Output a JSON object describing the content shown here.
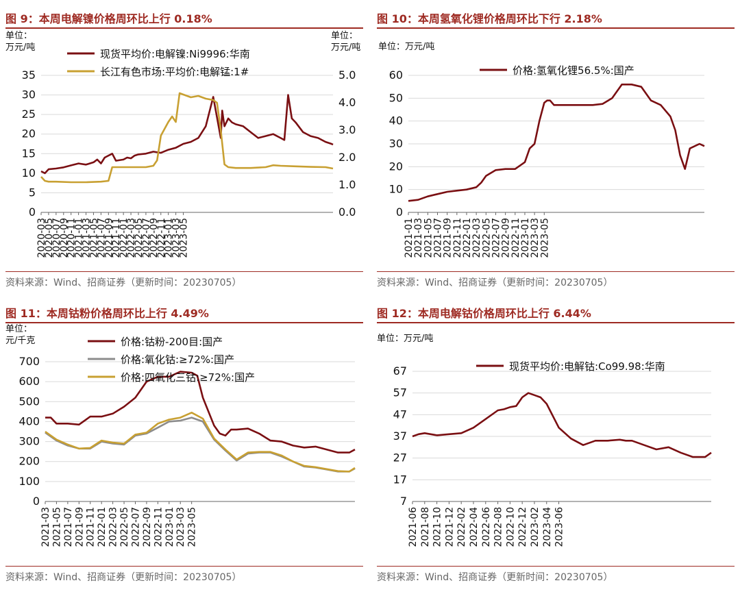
{
  "source_text": "资料来源：Wind、招商证券（更新时间：20230705）",
  "colors": {
    "title": "#9e2a22",
    "series_dark": "#7a0f12",
    "series_gold": "#c8a032",
    "series_gray": "#8c8c8c"
  },
  "chart_data": [
    {
      "type": "line",
      "title": "图 9：本周电解镍价格周环比上行 0.18%",
      "ylabel": "单位：万元/吨",
      "ylabel_lines": [
        "单位：",
        "万元/吨"
      ],
      "y2label_lines": [
        "单位：",
        "万元/吨"
      ],
      "x_ticks": [
        "2020-03",
        "2020-05",
        "2020-07",
        "2020-09",
        "2020-11",
        "2021-01",
        "2021-03",
        "2021-05",
        "2021-07",
        "2021-09",
        "2021-11",
        "2022-01",
        "2022-03",
        "2022-05",
        "2022-07",
        "2022-09",
        "2022-11",
        "2023-01",
        "2023-03",
        "2023-05"
      ],
      "ylim": [
        0,
        35
      ],
      "y_ticks": [
        0,
        5,
        10,
        15,
        20,
        25,
        30,
        35
      ],
      "y2lim": [
        0,
        5
      ],
      "y2_ticks": [
        "0.0",
        "1.0",
        "2.0",
        "3.0",
        "4.0",
        "5.0"
      ],
      "legend_position": "top-left",
      "grid": "horizontal",
      "series": [
        {
          "name": "现货平均价:电解镍:Ni9996:华南",
          "color": "#7a0f12",
          "axis": "left",
          "x": [
            0,
            0.5,
            1,
            2,
            3,
            4,
            5,
            6,
            7,
            7.5,
            8,
            8.5,
            9,
            9.5,
            10,
            11,
            11.5,
            12,
            12.5,
            13,
            14,
            15,
            16,
            17,
            18,
            19,
            20,
            21,
            22,
            23,
            24,
            24.2,
            24.5,
            25,
            25.5,
            26,
            27,
            28,
            29,
            30,
            31,
            32,
            32.5,
            33,
            33.5,
            34,
            35,
            36,
            37,
            38,
            38.8,
            39
          ],
          "values": [
            10.5,
            10,
            11,
            11.2,
            11.5,
            12,
            12.5,
            12.2,
            12.8,
            13.5,
            12.5,
            14,
            14.5,
            15,
            13.2,
            13.5,
            14,
            13.8,
            14.5,
            14.8,
            15,
            15.5,
            15.2,
            16,
            16.5,
            17.5,
            18,
            19,
            22,
            29.5,
            19,
            26,
            22,
            24,
            23,
            22.5,
            22,
            20.5,
            19,
            19.5,
            20,
            19,
            18.5,
            30,
            24,
            23,
            20.5,
            19.5,
            19,
            18,
            17.5,
            17.3
          ]
        },
        {
          "name": "长江有色市场:平均价:电解锰:1#",
          "color": "#c8a032",
          "axis": "right",
          "x": [
            0,
            0.5,
            1,
            2,
            4,
            6,
            8,
            9,
            9.5,
            10,
            12,
            14,
            15,
            15.5,
            16,
            17,
            17.5,
            18,
            18.5,
            19,
            20,
            21,
            22,
            23,
            23.5,
            24,
            24.5,
            25,
            26,
            28,
            30,
            31,
            32,
            34,
            36,
            38,
            39
          ],
          "values": [
            1.3,
            1.15,
            1.12,
            1.12,
            1.1,
            1.1,
            1.12,
            1.15,
            1.65,
            1.65,
            1.65,
            1.65,
            1.7,
            1.9,
            2.8,
            3.3,
            3.5,
            3.3,
            4.35,
            4.3,
            4.2,
            4.25,
            4.15,
            4.1,
            4.0,
            3.0,
            1.75,
            1.65,
            1.62,
            1.62,
            1.65,
            1.72,
            1.7,
            1.68,
            1.66,
            1.65,
            1.6
          ]
        }
      ]
    },
    {
      "type": "line",
      "title": "图 10：本周氢氧化锂价格周环比下行 2.18%",
      "ylabel": "单位：万元/吨",
      "x_ticks": [
        "2021-01",
        "2021-03",
        "2021-05",
        "2021-07",
        "2021-09",
        "2021-11",
        "2022-01",
        "2022-03",
        "2022-05",
        "2022-07",
        "2022-09",
        "2022-11",
        "2023-01",
        "2023-03",
        "2023-05"
      ],
      "ylim": [
        0,
        60
      ],
      "y_ticks": [
        0,
        10,
        20,
        30,
        40,
        50,
        60
      ],
      "legend_position": "top-center",
      "grid": "horizontal",
      "series": [
        {
          "name": "价格:氢氧化锂56.5%:国产",
          "color": "#7a0f12",
          "x": [
            0,
            1,
            2,
            3,
            4,
            5,
            6,
            7,
            7.5,
            8,
            9,
            10,
            11,
            12,
            12.5,
            13,
            13.5,
            14,
            14.3,
            14.6,
            15,
            16,
            17,
            18,
            19,
            20,
            21,
            21.5,
            22,
            23,
            24,
            25,
            26,
            27,
            27.5,
            28,
            28.5,
            29,
            30,
            30.5
          ],
          "values": [
            5,
            5.5,
            7,
            8,
            9,
            9.5,
            10,
            11,
            13,
            16,
            18.5,
            19,
            19,
            22,
            28,
            30,
            40,
            48,
            49,
            49,
            47,
            47,
            47,
            47,
            47,
            47.5,
            50,
            53,
            56,
            56,
            55,
            49,
            47,
            42,
            36,
            25,
            19,
            28,
            30,
            29
          ]
        }
      ]
    },
    {
      "type": "line",
      "title": "图 11：本周钴粉价格周环比上行 4.49%",
      "ylabel": "单位：元/千克",
      "ylabel_lines": [
        "单位：",
        "元/千克"
      ],
      "x_ticks": [
        "2021-03",
        "2021-05",
        "2021-07",
        "2021-09",
        "2021-11",
        "2022-01",
        "2022-03",
        "2022-05",
        "2022-07",
        "2022-09",
        "2022-11",
        "2023-01",
        "2023-03",
        "2023-05"
      ],
      "ylim": [
        0,
        700
      ],
      "y_ticks": [
        0,
        100,
        200,
        300,
        400,
        500,
        600,
        700
      ],
      "legend_position": "top-left",
      "grid": "horizontal",
      "series": [
        {
          "name": "价格:钴粉-200目:国产",
          "color": "#7a0f12",
          "x": [
            0,
            0.5,
            1,
            2,
            3,
            4,
            5,
            6,
            7,
            8,
            9,
            10,
            10.5,
            11,
            12,
            13,
            13.5,
            14,
            15,
            15.5,
            16,
            16.5,
            17,
            18,
            19,
            20,
            21,
            22,
            23,
            24,
            25,
            26,
            27,
            27.5
          ],
          "values": [
            420,
            420,
            390,
            390,
            385,
            425,
            425,
            440,
            475,
            520,
            600,
            625,
            625,
            625,
            650,
            645,
            630,
            520,
            380,
            340,
            330,
            360,
            360,
            365,
            340,
            305,
            300,
            280,
            270,
            275,
            260,
            245,
            245,
            260
          ]
        },
        {
          "name": "价格:氧化钴:≥72%:国产",
          "color": "#8c8c8c",
          "x": [
            0,
            1,
            2,
            3,
            4,
            5,
            6,
            7,
            8,
            9,
            10,
            11,
            12,
            13,
            14,
            15,
            16,
            17,
            18,
            19,
            20,
            21,
            22,
            23,
            24,
            25,
            26,
            27,
            27.5
          ],
          "values": [
            345,
            305,
            280,
            265,
            265,
            300,
            290,
            285,
            330,
            340,
            370,
            400,
            405,
            420,
            400,
            310,
            255,
            205,
            240,
            245,
            245,
            225,
            200,
            175,
            170,
            160,
            150,
            150,
            165
          ]
        },
        {
          "name": "价格:四氧化三钴:≥72%:国产",
          "color": "#c8a032",
          "x": [
            0,
            1,
            2,
            3,
            4,
            5,
            6,
            7,
            8,
            9,
            10,
            11,
            12,
            13,
            14,
            15,
            16,
            17,
            18,
            19,
            20,
            21,
            22,
            23,
            24,
            25,
            26,
            27,
            27.5
          ],
          "values": [
            350,
            310,
            285,
            265,
            268,
            305,
            295,
            290,
            335,
            345,
            390,
            410,
            420,
            445,
            415,
            315,
            260,
            210,
            245,
            248,
            248,
            230,
            200,
            178,
            172,
            162,
            152,
            150,
            168
          ]
        }
      ]
    },
    {
      "type": "line",
      "title": "图 12：本周电解钴价格周环比上行 6.44%",
      "ylabel": "单位：万元/吨",
      "x_ticks": [
        "2021-06",
        "2021-08",
        "2021-10",
        "2021-12",
        "2022-02",
        "2022-04",
        "2022-06",
        "2022-08",
        "2022-10",
        "2022-12",
        "2023-02",
        "2023-04",
        "2023-06"
      ],
      "ylim": [
        7,
        67
      ],
      "y_ticks": [
        7,
        17,
        27,
        37,
        47,
        57,
        67
      ],
      "legend_position": "top-center",
      "grid": "horizontal",
      "series": [
        {
          "name": "现货平均价:电解钴:Co99.98:华南",
          "color": "#7a0f12",
          "x": [
            0,
            0.5,
            1,
            2,
            3,
            4,
            5,
            6,
            7,
            7.5,
            8,
            8.5,
            9,
            9.5,
            10,
            10.5,
            11,
            12,
            13,
            14,
            15,
            16,
            17,
            17.5,
            18,
            19,
            20,
            21,
            22,
            23,
            24,
            24.5
          ],
          "values": [
            37,
            38,
            38.5,
            37.5,
            38,
            38.5,
            41,
            45,
            49,
            49.5,
            50.5,
            51,
            55,
            57,
            56,
            55,
            52,
            41,
            36,
            33,
            35,
            35,
            35.5,
            35,
            35,
            33,
            31,
            32,
            29.5,
            27.5,
            27.5,
            29.5
          ]
        }
      ]
    }
  ]
}
